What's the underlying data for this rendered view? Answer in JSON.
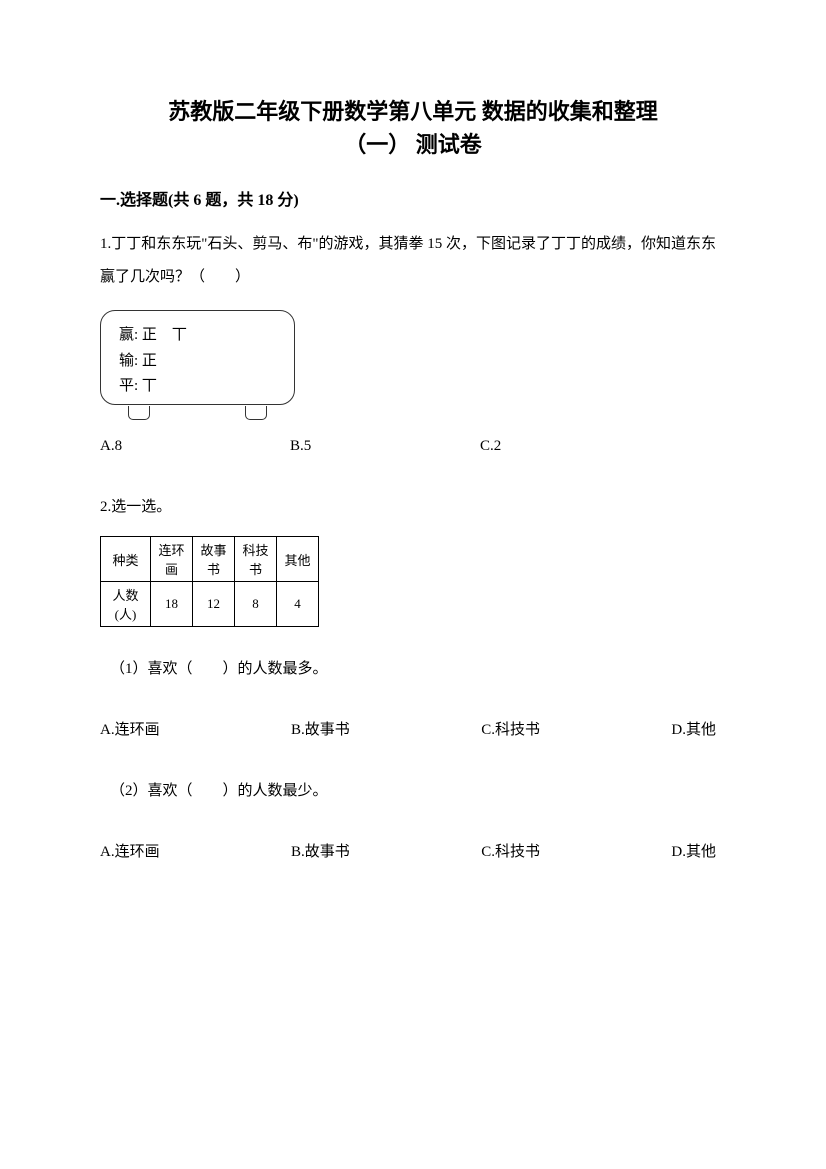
{
  "title_line1": "苏教版二年级下册数学第八单元 数据的收集和整理",
  "title_line2": "（一） 测试卷",
  "section1": "一.选择题(共 6 题，共 18 分)",
  "q1": {
    "text": "1.丁丁和东东玩\"石头、剪马、布\"的游戏，其猜拳 15 次，下图记录了丁丁的成绩，你知道东东赢了几次吗？（　　）",
    "tally_win_label": "赢:",
    "tally_win_marks": "正　丅",
    "tally_lose_label": "输:",
    "tally_lose_marks": "正",
    "tally_draw_label": "平:",
    "tally_draw_marks": "丅",
    "options": {
      "a": "A.8",
      "b": "B.5",
      "c": "C.2"
    }
  },
  "q2": {
    "text": "2.选一选。",
    "table": {
      "header_label": "种类",
      "row_label": "人数(人)",
      "categories": [
        "连环画",
        "故事书",
        "科技书",
        "其他"
      ],
      "values": [
        "18",
        "12",
        "8",
        "4"
      ]
    },
    "sub1": {
      "text": "（1）喜欢（　　）的人数最多。",
      "options": {
        "a": "A.连环画",
        "b": "B.故事书",
        "c": "C.科技书",
        "d": "D.其他"
      }
    },
    "sub2": {
      "text": "（2）喜欢（　　）的人数最少。",
      "options": {
        "a": "A.连环画",
        "b": "B.故事书",
        "c": "C.科技书",
        "d": "D.其他"
      }
    }
  }
}
